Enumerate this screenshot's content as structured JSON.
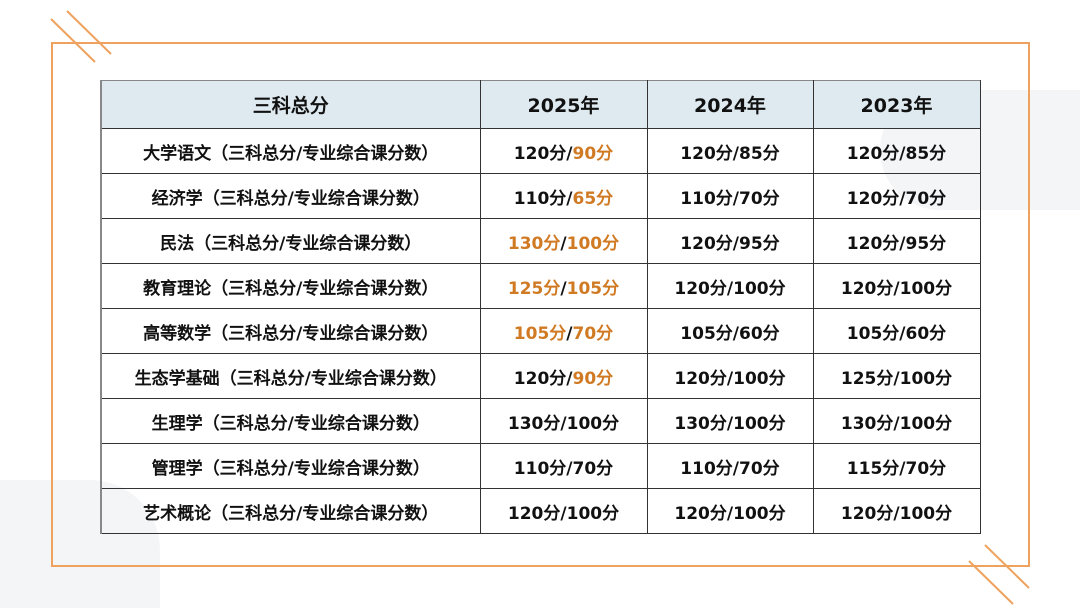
{
  "colors": {
    "frame": "#eea25d",
    "header_bg": "#deeaf0",
    "highlight": "#d07a24"
  },
  "headers": [
    "三科总分",
    "2025年",
    "2024年",
    "2023年"
  ],
  "rows": [
    {
      "name": "大学语文（三科总分/专业综合课分数）",
      "cells": [
        {
          "a": "120分",
          "ah": false,
          "b": "90分",
          "bh": true
        },
        {
          "a": "120分",
          "ah": false,
          "b": "85分",
          "bh": false
        },
        {
          "a": "120分",
          "ah": false,
          "b": "85分",
          "bh": false
        }
      ]
    },
    {
      "name": "经济学（三科总分/专业综合课分数）",
      "cells": [
        {
          "a": "110分",
          "ah": false,
          "b": "65分",
          "bh": true
        },
        {
          "a": "110分",
          "ah": false,
          "b": "70分",
          "bh": false
        },
        {
          "a": "120分",
          "ah": false,
          "b": "70分",
          "bh": false
        }
      ]
    },
    {
      "name": "民法（三科总分/专业综合课分数）",
      "cells": [
        {
          "a": "130分",
          "ah": true,
          "b": "100分",
          "bh": true
        },
        {
          "a": "120分",
          "ah": false,
          "b": "95分",
          "bh": false
        },
        {
          "a": "120分",
          "ah": false,
          "b": "95分",
          "bh": false
        }
      ]
    },
    {
      "name": "教育理论（三科总分/专业综合课分数）",
      "cells": [
        {
          "a": "125分",
          "ah": true,
          "b": "105分",
          "bh": true
        },
        {
          "a": "120分",
          "ah": false,
          "b": "100分",
          "bh": false
        },
        {
          "a": "120分",
          "ah": false,
          "b": "100分",
          "bh": false
        }
      ]
    },
    {
      "name": "高等数学（三科总分/专业综合课分数）",
      "cells": [
        {
          "a": "105分",
          "ah": true,
          "b": "70分",
          "bh": true
        },
        {
          "a": "105分",
          "ah": false,
          "b": "60分",
          "bh": false
        },
        {
          "a": "105分",
          "ah": false,
          "b": "60分",
          "bh": false
        }
      ]
    },
    {
      "name": "生态学基础（三科总分/专业综合课分数）",
      "cells": [
        {
          "a": "120分",
          "ah": false,
          "b": "90分",
          "bh": true
        },
        {
          "a": "120分",
          "ah": false,
          "b": "100分",
          "bh": false
        },
        {
          "a": "125分",
          "ah": false,
          "b": "100分",
          "bh": false
        }
      ]
    },
    {
      "name": "生理学（三科总分/专业综合课分数）",
      "cells": [
        {
          "a": "130分",
          "ah": false,
          "b": "100分",
          "bh": false
        },
        {
          "a": "130分",
          "ah": false,
          "b": "100分",
          "bh": false
        },
        {
          "a": "130分",
          "ah": false,
          "b": "100分",
          "bh": false
        }
      ]
    },
    {
      "name": "管理学（三科总分/专业综合课分数）",
      "cells": [
        {
          "a": "110分",
          "ah": false,
          "b": "70分",
          "bh": false
        },
        {
          "a": "110分",
          "ah": false,
          "b": "70分",
          "bh": false
        },
        {
          "a": "115分",
          "ah": false,
          "b": "70分",
          "bh": false
        }
      ]
    },
    {
      "name": "艺术概论（三科总分/专业综合课分数）",
      "cells": [
        {
          "a": "120分",
          "ah": false,
          "b": "100分",
          "bh": false
        },
        {
          "a": "120分",
          "ah": false,
          "b": "100分",
          "bh": false
        },
        {
          "a": "120分",
          "ah": false,
          "b": "100分",
          "bh": false
        }
      ]
    }
  ],
  "separator": "/"
}
